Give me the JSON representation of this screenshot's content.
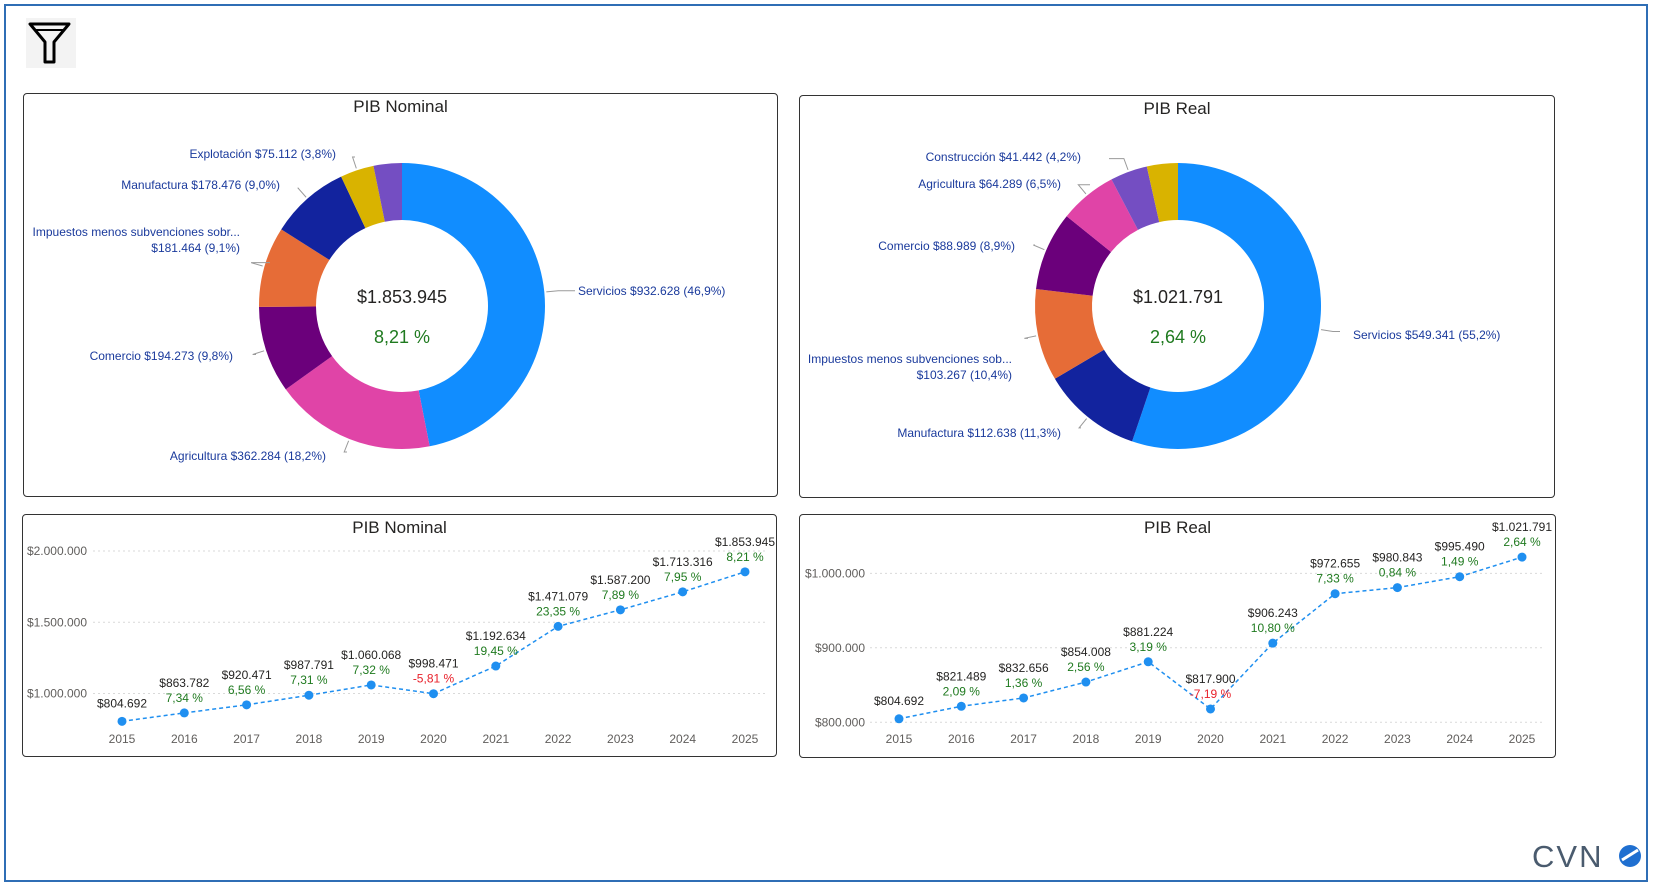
{
  "toolbar": {
    "filter_icon": "filter-funnel-icon"
  },
  "logo_text": "CVN",
  "colors": {
    "label_blue": "#1a3a9c",
    "growth_positive": "#1f7a1f",
    "growth_negative": "#e8202a",
    "line_blue": "#1f8ff0",
    "border": "#2f6eb5"
  },
  "panels": {
    "donut_nominal": {
      "title": "PIB Nominal"
    },
    "donut_real": {
      "title": "PIB Real"
    },
    "line_nominal": {
      "title": "PIB Nominal"
    },
    "line_real": {
      "title": "PIB Real"
    }
  },
  "chart_data": [
    {
      "type": "pie",
      "title": "PIB Nominal",
      "center_total": "$1.853.945",
      "center_growth": "8,21 %",
      "slices": [
        {
          "name": "Servicios",
          "value_label": "$932.628",
          "pct_label": "46,9%",
          "pct": 46.9,
          "color": "#118dff"
        },
        {
          "name": "Agricultura",
          "value_label": "$362.284",
          "pct_label": "18,2%",
          "pct": 18.2,
          "color": "#e044a7"
        },
        {
          "name": "Comercio",
          "value_label": "$194.273",
          "pct_label": "9,8%",
          "pct": 9.8,
          "color": "#6b007b"
        },
        {
          "name": "Impuestos menos subvenciones sobr...",
          "value_label": "$181.464",
          "pct_label": "9,1%",
          "pct": 9.1,
          "color": "#e66c37"
        },
        {
          "name": "Manufactura",
          "value_label": "$178.476",
          "pct_label": "9,0%",
          "pct": 9.0,
          "color": "#12239e"
        },
        {
          "name": "Explotación",
          "value_label": "$75.112",
          "pct_label": "3,8%",
          "pct": 3.8,
          "color": "#d9b300"
        },
        {
          "name": "",
          "value_label": "",
          "pct_label": "",
          "pct": 3.2,
          "color": "#744ec2"
        }
      ]
    },
    {
      "type": "pie",
      "title": "PIB Real",
      "center_total": "$1.021.791",
      "center_growth": "2,64 %",
      "slices": [
        {
          "name": "Servicios",
          "value_label": "$549.341",
          "pct_label": "55,2%",
          "pct": 55.2,
          "color": "#118dff"
        },
        {
          "name": "Manufactura",
          "value_label": "$112.638",
          "pct_label": "11,3%",
          "pct": 11.3,
          "color": "#12239e"
        },
        {
          "name": "Impuestos menos subvenciones sob...",
          "value_label": "$103.267",
          "pct_label": "10,4%",
          "pct": 10.4,
          "color": "#e66c37"
        },
        {
          "name": "Comercio",
          "value_label": "$88.989",
          "pct_label": "8,9%",
          "pct": 8.9,
          "color": "#6b007b"
        },
        {
          "name": "Agricultura",
          "value_label": "$64.289",
          "pct_label": "6,5%",
          "pct": 6.5,
          "color": "#e044a7"
        },
        {
          "name": "Construcción",
          "value_label": "$41.442",
          "pct_label": "4,2%",
          "pct": 4.2,
          "color": "#744ec2"
        },
        {
          "name": "",
          "value_label": "",
          "pct_label": "",
          "pct": 3.5,
          "color": "#d9b300"
        }
      ]
    },
    {
      "type": "line",
      "title": "PIB Nominal",
      "x": [
        "2015",
        "2016",
        "2017",
        "2018",
        "2019",
        "2020",
        "2021",
        "2022",
        "2023",
        "2024",
        "2025"
      ],
      "values": [
        804692,
        863782,
        920471,
        987791,
        1060068,
        998471,
        1192634,
        1471079,
        1587200,
        1713316,
        1853945
      ],
      "value_labels": [
        "$804.692",
        "$863.782",
        "$920.471",
        "$987.791",
        "$1.060.068",
        "$998.471",
        "$1.192.634",
        "$1.471.079",
        "$1.587.200",
        "$1.713.316",
        "$1.853.945"
      ],
      "growth_labels": [
        "",
        "7,34 %",
        "6,56 %",
        "7,31 %",
        "7,32 %",
        "-5,81 %",
        "19,45 %",
        "23,35 %",
        "7,89 %",
        "7,95 %",
        "8,21 %"
      ],
      "y_ticks": [
        1000000,
        1500000,
        2000000
      ],
      "y_tick_labels": [
        "$1.000.000",
        "$1.500.000",
        "$2.000.000"
      ],
      "ylim": [
        800000,
        2000000
      ],
      "grid": true
    },
    {
      "type": "line",
      "title": "PIB Real",
      "x": [
        "2015",
        "2016",
        "2017",
        "2018",
        "2019",
        "2020",
        "2021",
        "2022",
        "2023",
        "2024",
        "2025"
      ],
      "values": [
        804692,
        821489,
        832656,
        854008,
        881224,
        817900,
        906243,
        972655,
        980843,
        995490,
        1021791
      ],
      "value_labels": [
        "$804.692",
        "$821.489",
        "$832.656",
        "$854.008",
        "$881.224",
        "$817.900",
        "$906.243",
        "$972.655",
        "$980.843",
        "$995.490",
        "$1.021.791"
      ],
      "growth_labels": [
        "",
        "2,09 %",
        "1,36 %",
        "2,56 %",
        "3,19 %",
        "-7,19 %",
        "10,80 %",
        "7,33 %",
        "0,84 %",
        "1,49 %",
        "2,64 %"
      ],
      "y_ticks": [
        800000,
        900000,
        1000000
      ],
      "y_tick_labels": [
        "$800.000",
        "$900.000",
        "$1.000.000"
      ],
      "ylim": [
        795000,
        1030000
      ],
      "grid": true
    }
  ]
}
